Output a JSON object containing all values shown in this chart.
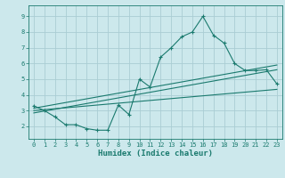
{
  "xlabel": "Humidex (Indice chaleur)",
  "ylabel": "",
  "bg_color": "#cce8ec",
  "grid_color": "#aacdd4",
  "line_color": "#1a7a6e",
  "xlim": [
    -0.5,
    23.5
  ],
  "ylim": [
    1.2,
    9.7
  ],
  "xticks": [
    0,
    1,
    2,
    3,
    4,
    5,
    6,
    7,
    8,
    9,
    10,
    11,
    12,
    13,
    14,
    15,
    16,
    17,
    18,
    19,
    20,
    21,
    22,
    23
  ],
  "yticks": [
    2,
    3,
    4,
    5,
    6,
    7,
    8,
    9
  ],
  "main_x": [
    0,
    1,
    2,
    3,
    4,
    5,
    6,
    7,
    8,
    9,
    10,
    11,
    12,
    13,
    14,
    15,
    16,
    17,
    18,
    19,
    20,
    21,
    22,
    23
  ],
  "main_y": [
    3.3,
    3.0,
    2.6,
    2.1,
    2.1,
    1.85,
    1.75,
    1.75,
    3.35,
    2.75,
    5.0,
    4.5,
    6.4,
    7.0,
    7.7,
    8.0,
    9.0,
    7.8,
    7.3,
    6.0,
    5.55,
    5.55,
    5.6,
    4.7
  ],
  "trend1_x": [
    0,
    23
  ],
  "trend1_y": [
    3.15,
    5.9
  ],
  "trend2_x": [
    0,
    23
  ],
  "trend2_y": [
    2.85,
    5.6
  ],
  "trend3_x": [
    0,
    23
  ],
  "trend3_y": [
    3.0,
    4.35
  ]
}
